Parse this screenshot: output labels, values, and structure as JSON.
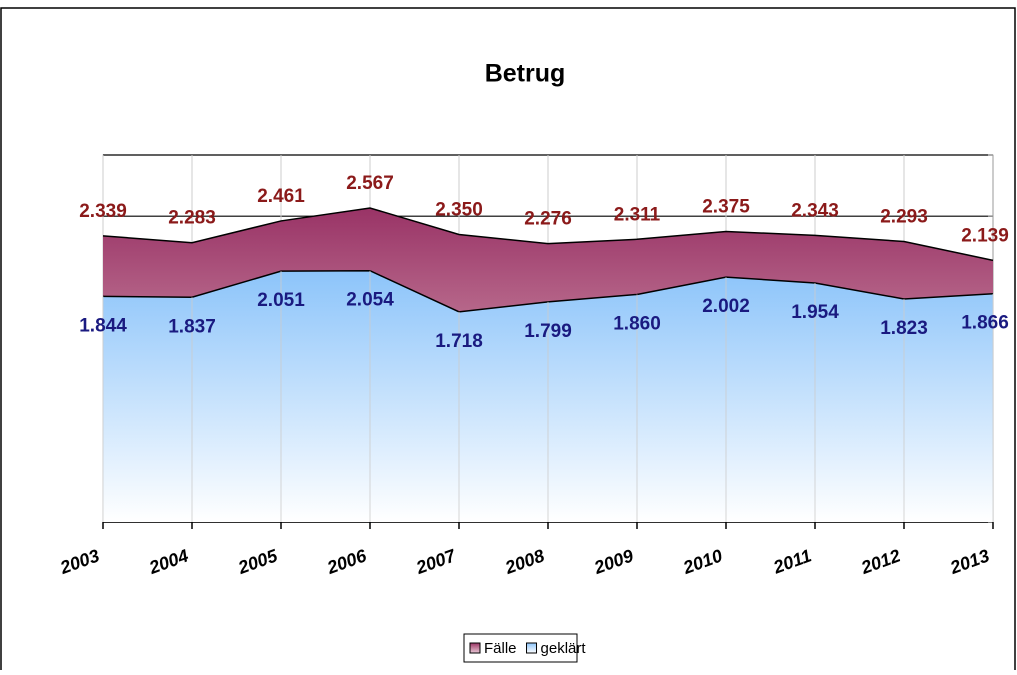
{
  "chart_data": {
    "type": "area",
    "title": "Betrug",
    "categories": [
      "2003",
      "2004",
      "2005",
      "2006",
      "2007",
      "2008",
      "2009",
      "2010",
      "2011",
      "2012",
      "2013"
    ],
    "series": [
      {
        "name": "Fälle",
        "color": "#993366",
        "values": [
          2339,
          2283,
          2461,
          2567,
          2350,
          2276,
          2311,
          2375,
          2343,
          2293,
          2139
        ],
        "value_labels": [
          "2.339",
          "2.283",
          "2.461",
          "2.567",
          "2.350",
          "2.276",
          "2.311",
          "2.375",
          "2.343",
          "2.293",
          "2.139"
        ]
      },
      {
        "name": "geklärt",
        "color": "#99ccff",
        "values": [
          1844,
          1837,
          2051,
          2054,
          1718,
          1799,
          1860,
          2002,
          1954,
          1823,
          1866
        ],
        "value_labels": [
          "1.844",
          "1.837",
          "2.051",
          "2.054",
          "1.718",
          "1.799",
          "1.860",
          "2.002",
          "1.954",
          "1.823",
          "1.866"
        ]
      }
    ],
    "ylim": [
      0,
      3000
    ],
    "yticks": [
      0,
      500,
      1000,
      1500,
      2000,
      2500,
      3000
    ],
    "grid": true,
    "legend": "bottom"
  }
}
